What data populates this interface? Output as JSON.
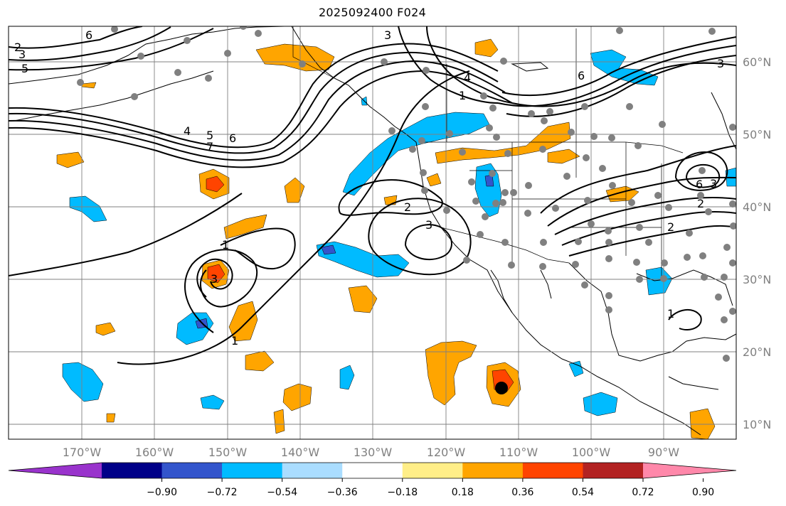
{
  "title": "2025092400 F024",
  "map": {
    "lon_ticks": [
      "170°W",
      "160°W",
      "150°W",
      "140°W",
      "130°W",
      "120°W",
      "110°W",
      "100°W",
      "90°W"
    ],
    "lat_ticks": [
      "60°N",
      "50°N",
      "40°N",
      "30°N",
      "20°N",
      "10°N"
    ],
    "grid": true,
    "contour_labels": [
      "2",
      "3",
      "5",
      "6",
      "4",
      "5",
      "6",
      "7",
      "3",
      "4",
      "1",
      "6",
      "3",
      "2",
      "3",
      "1",
      "3",
      "1",
      "1",
      "6",
      "3",
      "2",
      "2"
    ]
  },
  "colorbar": {
    "ticks": [
      "−0.90",
      "−0.72",
      "−0.54",
      "−0.36",
      "−0.18",
      "0.18",
      "0.36",
      "0.54",
      "0.72",
      "0.90"
    ],
    "colors": [
      "#9933cc",
      "#000088",
      "#3355cc",
      "#00bbff",
      "#aaddff",
      "#ffffff",
      "#ffee88",
      "#ffa500",
      "#ff4400",
      "#b22222",
      "#ff88aa"
    ],
    "extend": "both"
  }
}
